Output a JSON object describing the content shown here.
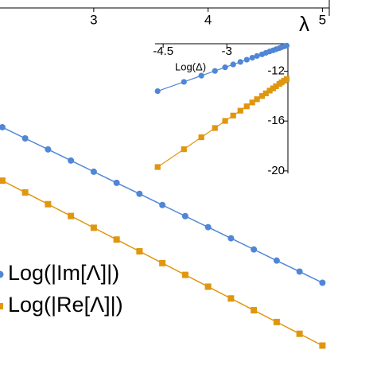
{
  "chart_data": [
    {
      "type": "line",
      "x_label": "λ",
      "x": [
        2.2,
        2.4,
        2.6,
        2.8,
        3.0,
        3.2,
        3.4,
        3.6,
        3.8,
        4.0,
        4.2,
        4.4,
        4.6,
        4.8,
        5.0
      ],
      "xlim": [
        2.18,
        5.06
      ],
      "xticks": [
        3,
        4,
        5
      ],
      "ylim": [
        -24,
        0
      ],
      "series": [
        {
          "name": "Log(|Im[Λ]|)",
          "color": "#4f86d6",
          "marker": "circle",
          "values": [
            -8.1,
            -8.81,
            -9.51,
            -10.22,
            -10.93,
            -11.64,
            -12.34,
            -13.05,
            -13.76,
            -14.46,
            -15.17,
            -15.88,
            -16.59,
            -17.29,
            -18.0
          ]
        },
        {
          "name": "Log(|Re[Λ]|)",
          "color": "#e0960f",
          "marker": "square",
          "values": [
            -11.5,
            -12.25,
            -13.0,
            -13.75,
            -14.5,
            -15.25,
            -16.0,
            -16.75,
            -17.5,
            -18.25,
            -19.0,
            -19.75,
            -20.5,
            -21.25,
            -22.0
          ]
        }
      ]
    },
    {
      "type": "line",
      "x_label": "Log(Δ)",
      "x": [
        -4.63,
        -4.01,
        -3.6,
        -3.28,
        -3.04,
        -2.85,
        -2.68,
        -2.53,
        -2.4,
        -2.29,
        -2.17,
        -2.08,
        -1.99,
        -1.91,
        -1.84,
        -1.76,
        -1.71,
        -1.65,
        -1.59
      ],
      "xlim": [
        -4.69,
        -1.56
      ],
      "xticks": [
        -4.5,
        -3
      ],
      "ylim": [
        -20.2,
        -9.8
      ],
      "yticks": [
        -12,
        -16,
        -20
      ],
      "series": [
        {
          "color": "#4f86d6",
          "marker": "circle",
          "values": [
            -13.6,
            -12.86,
            -12.36,
            -11.98,
            -11.69,
            -11.46,
            -11.26,
            -11.08,
            -10.92,
            -10.78,
            -10.65,
            -10.53,
            -10.42,
            -10.33,
            -10.24,
            -10.15,
            -10.08,
            -10.01,
            -9.95
          ]
        },
        {
          "color": "#e0960f",
          "marker": "square",
          "values": [
            -19.69,
            -18.26,
            -17.3,
            -16.56,
            -15.99,
            -15.56,
            -15.17,
            -14.82,
            -14.51,
            -14.25,
            -13.99,
            -13.78,
            -13.56,
            -13.38,
            -13.21,
            -13.03,
            -12.9,
            -12.77,
            -12.64
          ]
        }
      ]
    }
  ]
}
